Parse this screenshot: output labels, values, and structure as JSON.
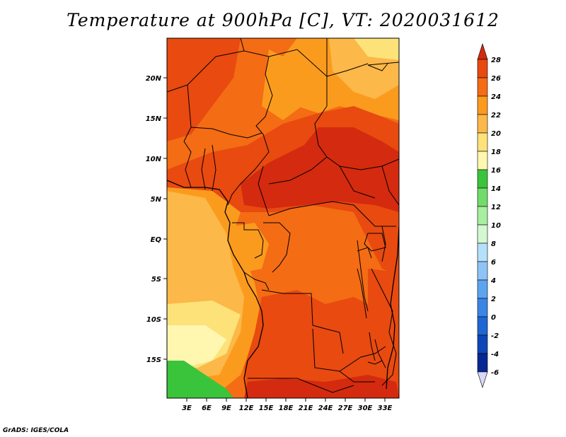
{
  "title": "Temperature at 900hPa [C], VT: 2020031612",
  "credit": "GrADS: IGES/COLA",
  "axes": {
    "lat_labels": [
      "20N",
      "15N",
      "10N",
      "5N",
      "EQ",
      "5S",
      "10S",
      "15S"
    ],
    "lon_labels": [
      "3E",
      "6E",
      "9E",
      "12E",
      "15E",
      "18E",
      "21E",
      "24E",
      "27E",
      "30E",
      "33E"
    ]
  },
  "colorbar": {
    "labels": [
      "28",
      "26",
      "24",
      "22",
      "20",
      "18",
      "16",
      "14",
      "12",
      "10",
      "8",
      "6",
      "4",
      "2",
      "0",
      "-2",
      "-4",
      "-6"
    ],
    "colors": [
      "#d42a0f",
      "#e84a10",
      "#f46c14",
      "#fb9b1e",
      "#fcb848",
      "#fde27a",
      "#fff7b0",
      "#3ac43c",
      "#72dc6a",
      "#a8eea0",
      "#d4f8d0",
      "#b4e0fb",
      "#8ec4f5",
      "#5ca4ef",
      "#3a86e6",
      "#1e66d4",
      "#0e46b8",
      "#062894",
      "#000a5a"
    ],
    "min_arrow_color": "#d8d8f8"
  },
  "map_colors": {
    "t28": "#d42a0f",
    "t26": "#e84a10",
    "t24": "#f46c14",
    "t22": "#fb9b1e",
    "t20": "#fcb848",
    "t18": "#fde27a",
    "t16": "#fff7b0",
    "t14": "#3ac43c",
    "border": "#000000"
  }
}
